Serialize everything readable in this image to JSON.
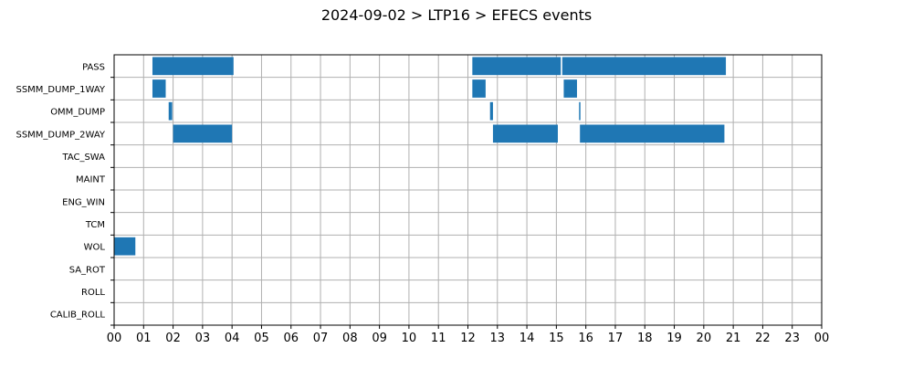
{
  "chart_data": {
    "type": "bar",
    "subtype": "timeline",
    "title": "2024-09-02 > LTP16 > EFECS events",
    "xlabel": "",
    "ylabel": "",
    "x_range_hours": [
      0,
      24
    ],
    "x_tick_labels": [
      "00",
      "01",
      "02",
      "03",
      "04",
      "05",
      "06",
      "07",
      "08",
      "09",
      "10",
      "11",
      "12",
      "13",
      "14",
      "15",
      "16",
      "17",
      "18",
      "19",
      "20",
      "21",
      "22",
      "23",
      "00"
    ],
    "grid": true,
    "bar_color": "#1f77b4",
    "categories": [
      "PASS",
      "SSMM_DUMP_1WAY",
      "OMM_DUMP",
      "SSMM_DUMP_2WAY",
      "TAC_SWA",
      "MAINT",
      "ENG_WIN",
      "TCM",
      "WOL",
      "SA_ROT",
      "ROLL",
      "CALIB_ROLL"
    ],
    "events": [
      {
        "category": "PASS",
        "start": 1.3,
        "end": 4.05
      },
      {
        "category": "PASS",
        "start": 12.15,
        "end": 15.15
      },
      {
        "category": "PASS",
        "start": 15.2,
        "end": 20.75
      },
      {
        "category": "SSMM_DUMP_1WAY",
        "start": 1.3,
        "end": 1.75
      },
      {
        "category": "SSMM_DUMP_1WAY",
        "start": 12.15,
        "end": 12.6
      },
      {
        "category": "SSMM_DUMP_1WAY",
        "start": 15.25,
        "end": 15.7
      },
      {
        "category": "OMM_DUMP",
        "start": 1.85,
        "end": 1.97
      },
      {
        "category": "OMM_DUMP",
        "start": 12.75,
        "end": 12.85
      },
      {
        "category": "OMM_DUMP",
        "start": 15.77,
        "end": 15.81
      },
      {
        "category": "SSMM_DUMP_2WAY",
        "start": 2.0,
        "end": 4.0
      },
      {
        "category": "SSMM_DUMP_2WAY",
        "start": 12.85,
        "end": 15.05
      },
      {
        "category": "SSMM_DUMP_2WAY",
        "start": 15.8,
        "end": 20.7
      },
      {
        "category": "WOL",
        "start": 0.0,
        "end": 0.72
      }
    ]
  }
}
